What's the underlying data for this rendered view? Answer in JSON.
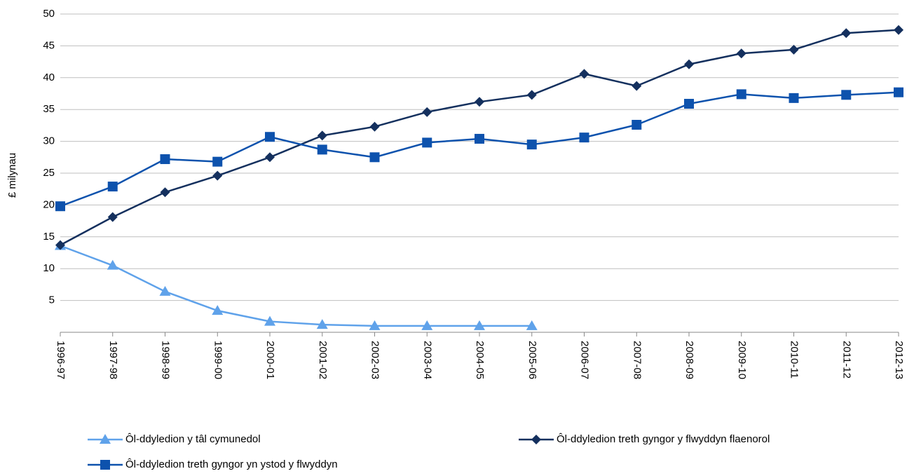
{
  "chart_data": {
    "type": "line",
    "y_label": "£ milynau",
    "categories": [
      "1996-97",
      "1997-98",
      "1998-99",
      "1999-00",
      "2000-01",
      "2001-02",
      "2002-03",
      "2003-04",
      "2004-05",
      "2005-06",
      "2006-07",
      "2007-08",
      "2008-09",
      "2009-10",
      "2010-11",
      "2011-12",
      "2012-13"
    ],
    "series": [
      {
        "name": "Ôl-ddyledion y tâl cymunedol",
        "color": "#5fa2ea",
        "marker": "triangle",
        "values": [
          13.6,
          10.5,
          6.4,
          3.4,
          1.7,
          1.2,
          1.0,
          1.0,
          1.0,
          1.0,
          null,
          null,
          null,
          null,
          null,
          null,
          null
        ]
      },
      {
        "name": "Ôl-ddyledion treth gyngor y flwyddyn flaenorol",
        "color": "#14305e",
        "marker": "diamond",
        "values": [
          13.7,
          18.1,
          22.0,
          24.6,
          27.5,
          30.9,
          32.3,
          34.6,
          36.2,
          37.3,
          40.6,
          38.7,
          42.1,
          43.8,
          44.4,
          47.0,
          47.5
        ]
      },
      {
        "name": "Ôl-ddyledion treth gyngor yn ystod y flwyddyn",
        "color": "#0d52ad",
        "marker": "square",
        "values": [
          19.8,
          22.9,
          27.2,
          26.8,
          30.7,
          28.7,
          27.5,
          29.8,
          30.4,
          29.5,
          30.6,
          32.6,
          35.9,
          37.4,
          36.8,
          37.3,
          37.7
        ]
      }
    ],
    "ylim": [
      0,
      50
    ],
    "yticks": [
      5,
      10,
      15,
      20,
      25,
      30,
      35,
      40,
      45,
      50
    ],
    "grid": true
  }
}
